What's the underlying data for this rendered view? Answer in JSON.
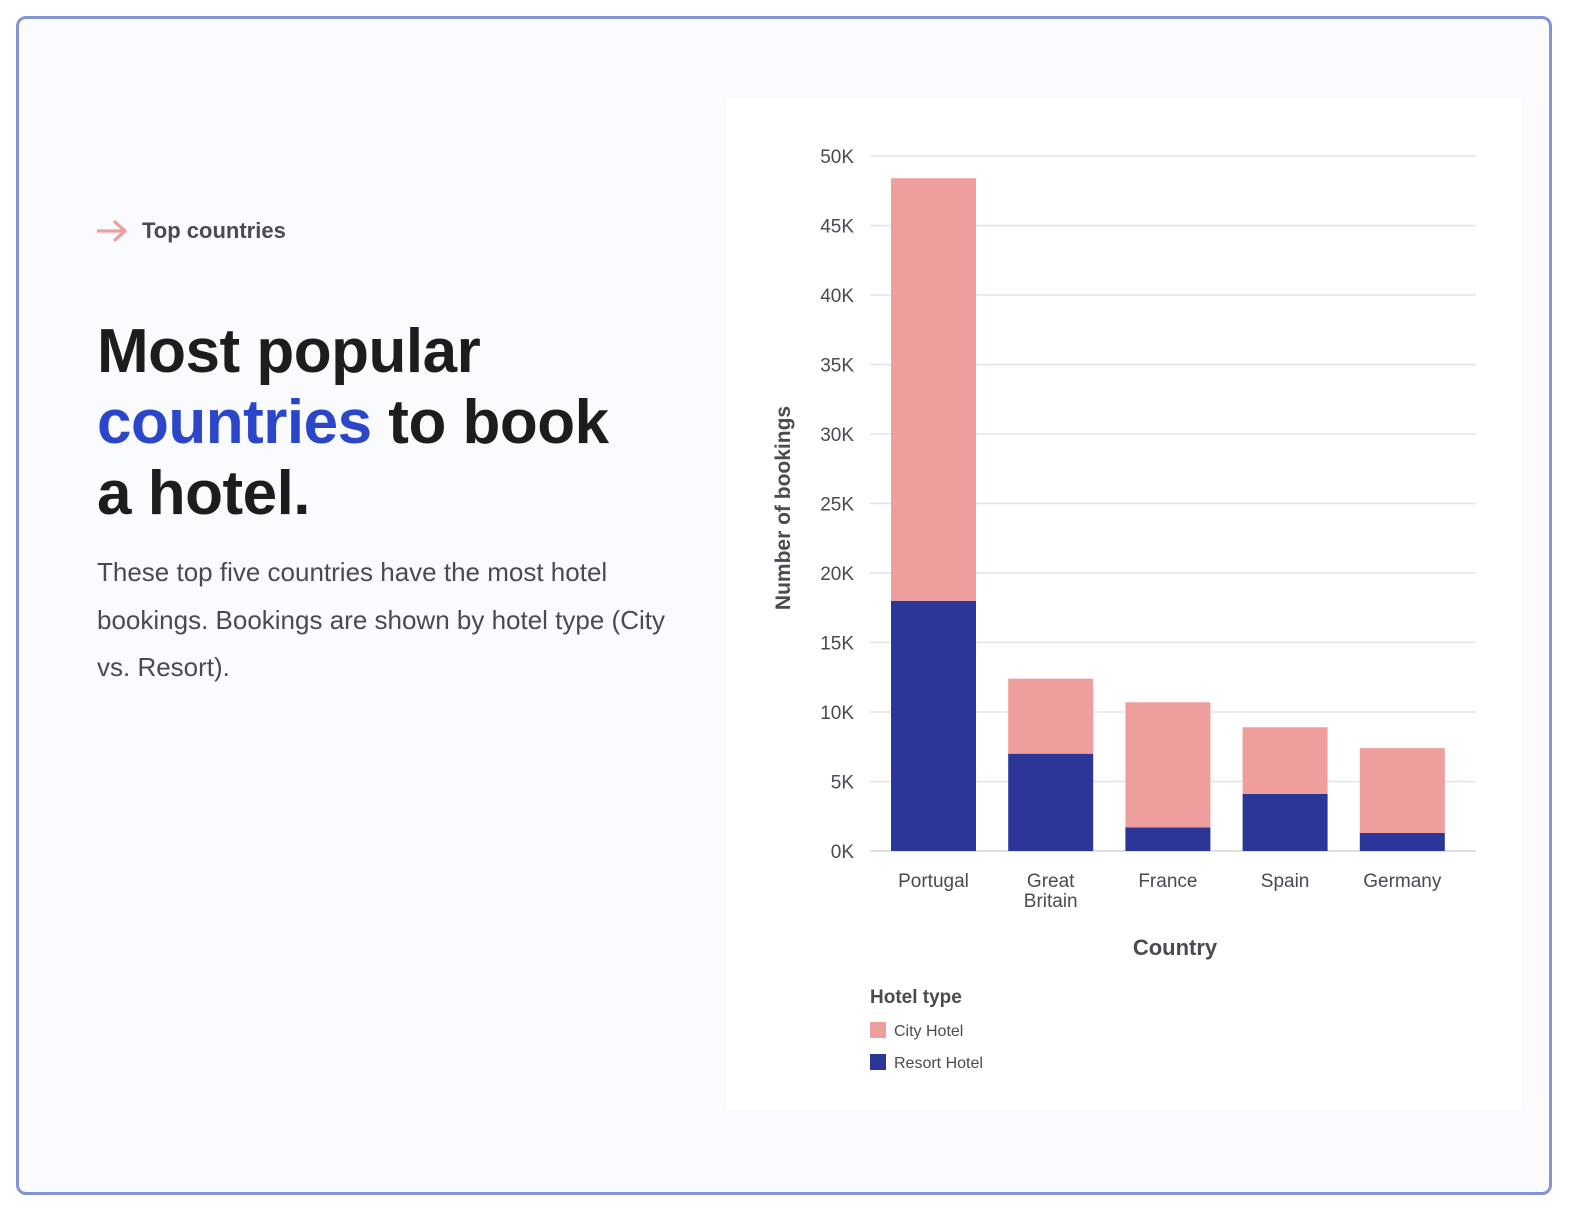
{
  "header": {
    "eyebrow": "Top countries",
    "title_part1": "Most popular",
    "title_accent": "countries",
    "title_part2": "to book",
    "title_part3": "a hotel.",
    "description": "These top five countries have the most hotel bookings. Bookings are shown by hotel type (City vs. Resort)."
  },
  "colors": {
    "accent": "#2b46c8",
    "city_hotel": "#ef9e9e",
    "resort_hotel": "#2c3598",
    "arrow": "#ef9e9e"
  },
  "chart_data": {
    "type": "bar",
    "stacked": true,
    "categories": [
      "Portugal",
      "Great Britain",
      "France",
      "Spain",
      "Germany"
    ],
    "series": [
      {
        "name": "Resort Hotel",
        "values": [
          18000,
          7000,
          1700,
          4100,
          1300
        ]
      },
      {
        "name": "City Hotel",
        "values": [
          30400,
          5400,
          9000,
          4800,
          6100
        ]
      }
    ],
    "xlabel": "Country",
    "ylabel": "Number of bookings",
    "ylim": [
      0,
      50000
    ],
    "yticks": [
      "0K",
      "5K",
      "10K",
      "15K",
      "20K",
      "25K",
      "30K",
      "35K",
      "40K",
      "45K",
      "50K"
    ],
    "grid": true,
    "legend_title": "Hotel type",
    "legend_position": "bottom-left",
    "legend": [
      "City Hotel",
      "Resort Hotel"
    ]
  }
}
